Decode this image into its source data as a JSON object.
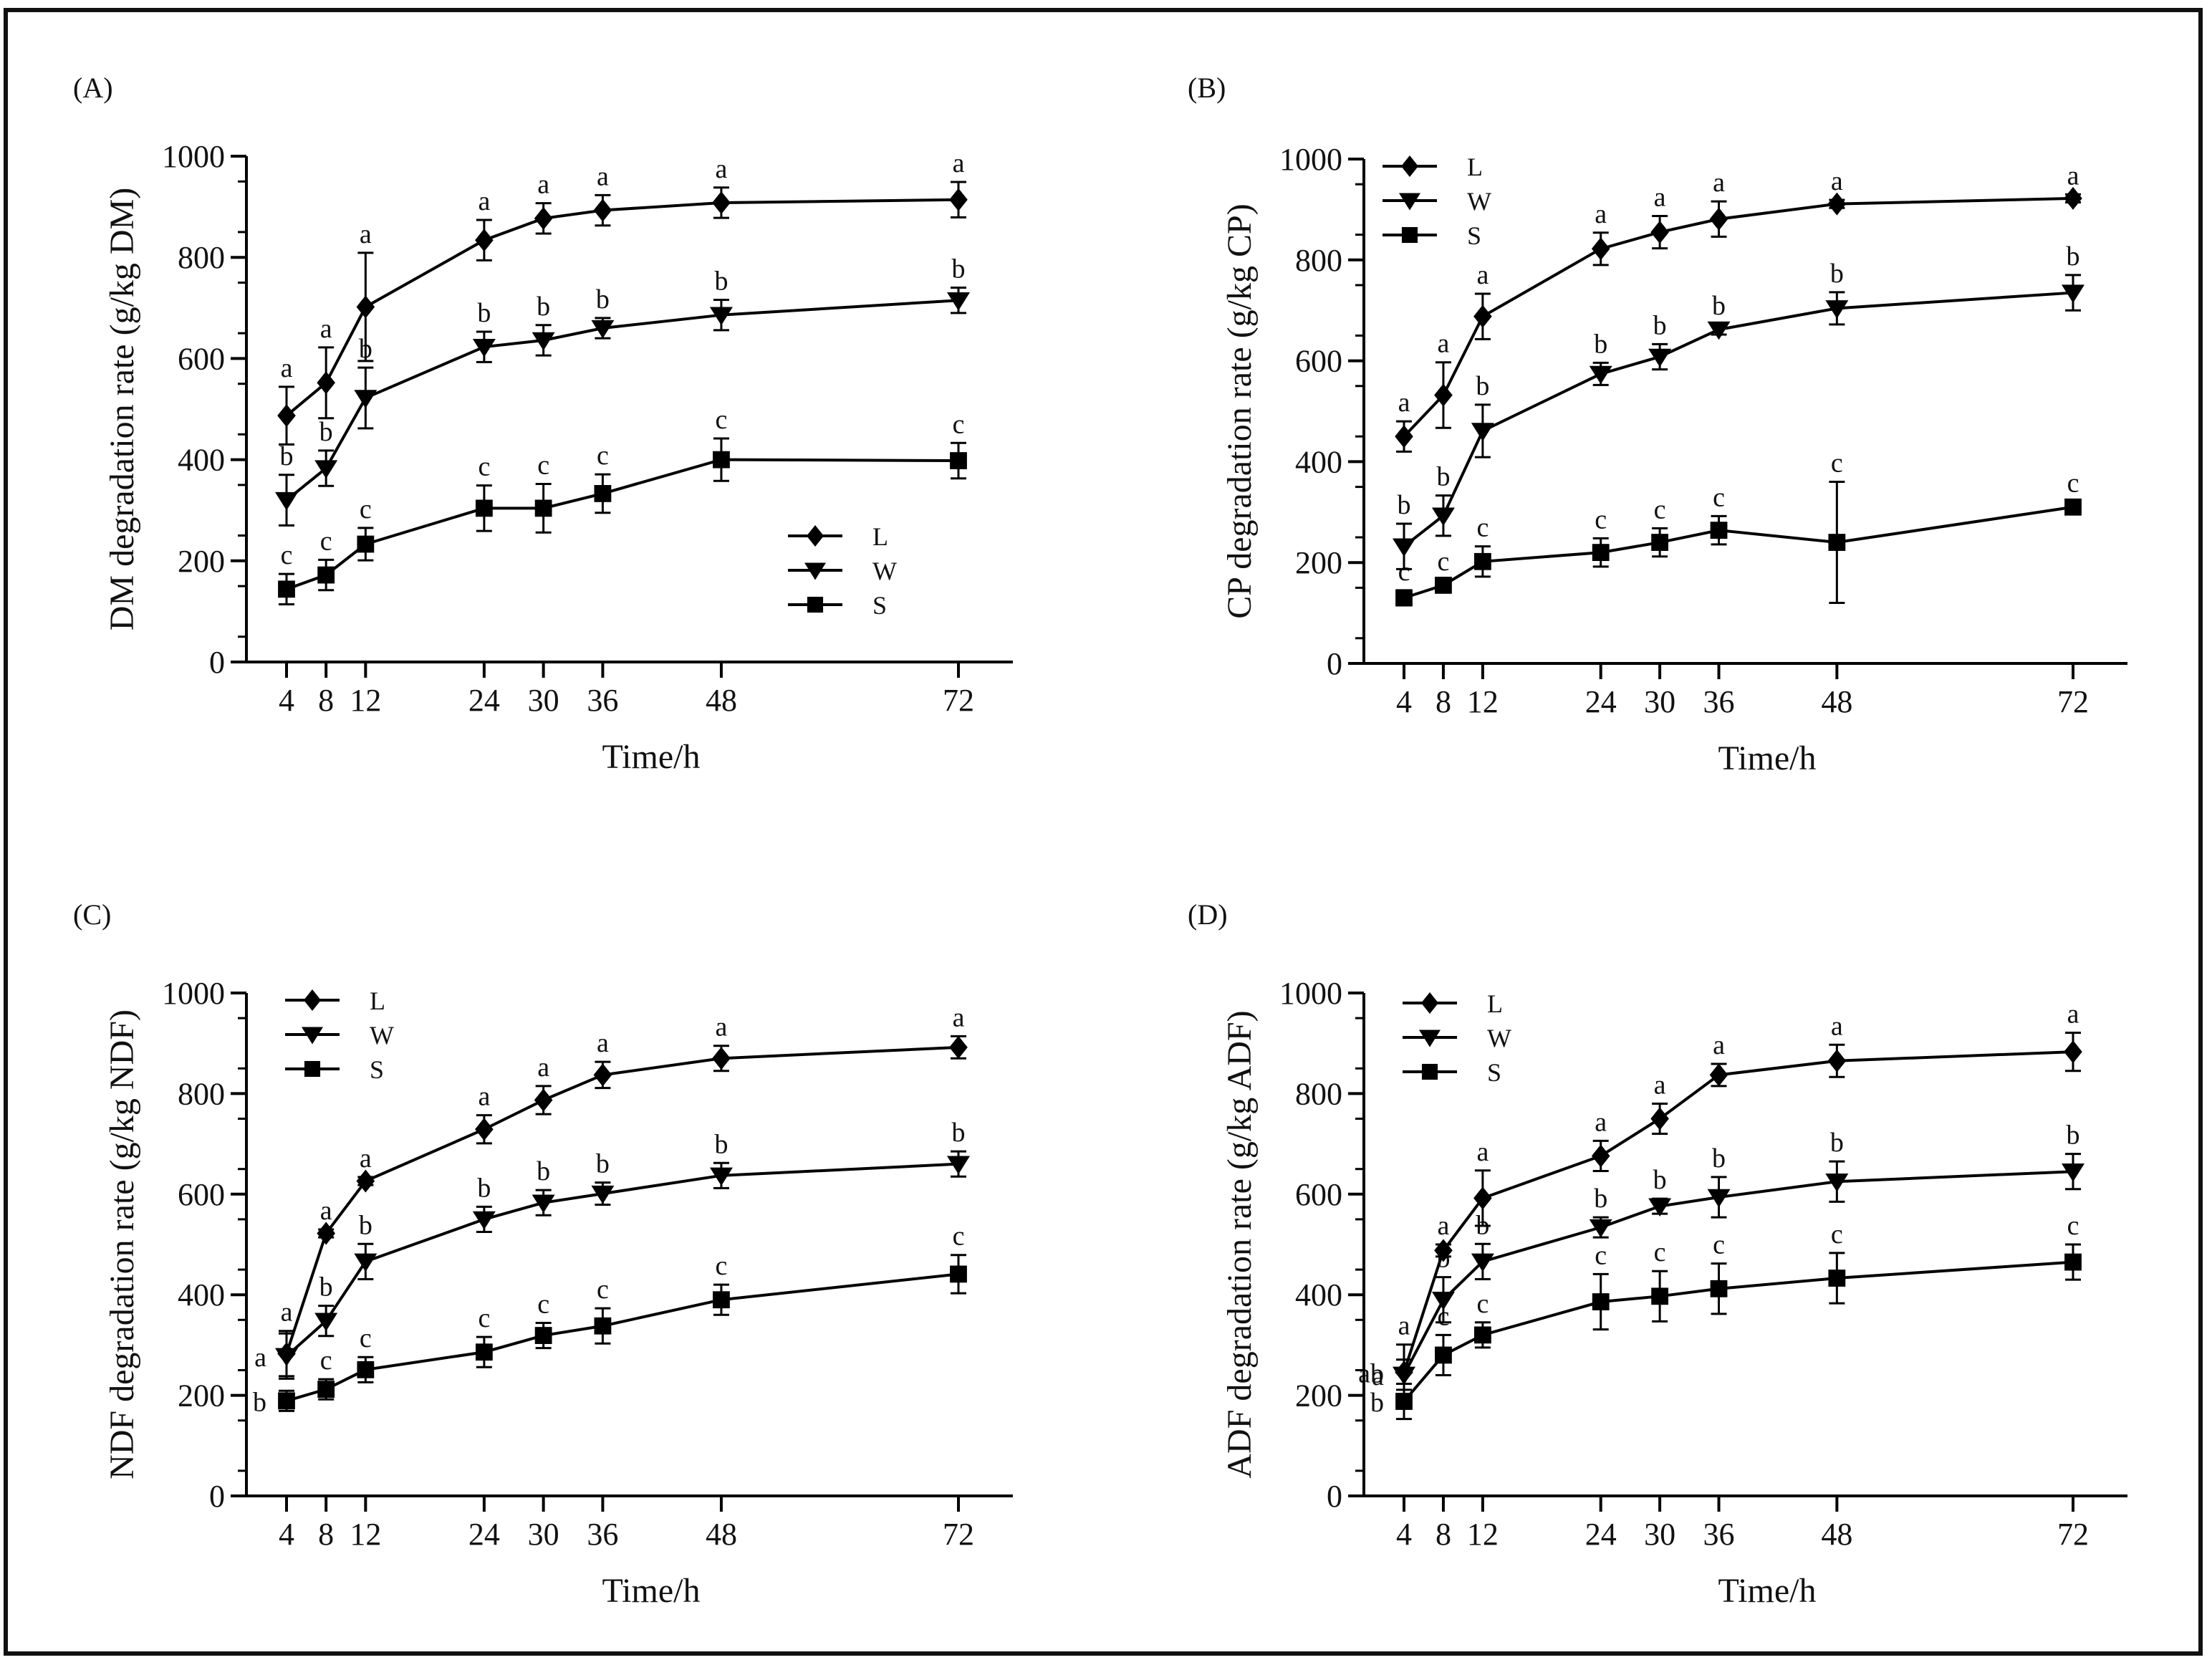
{
  "chart_data": [
    {
      "type": "line",
      "panel": "(A)",
      "xlabel": "Time/h",
      "ylabel": "DM degradation rate (g/kg DM)",
      "ylim": [
        0,
        1000
      ],
      "x": [
        4,
        8,
        12,
        24,
        30,
        36,
        48,
        72
      ],
      "x_ticks": [
        "4",
        "8",
        "12",
        "24",
        "30",
        "36",
        "48",
        "72"
      ],
      "y_ticks": [
        "0",
        "200",
        "400",
        "600",
        "800",
        "1000"
      ],
      "legend_position": "center-right",
      "series": [
        {
          "name": "L",
          "marker": "diamond",
          "values": [
            487,
            552,
            702,
            834,
            877,
            893,
            908,
            914
          ],
          "errors": [
            57,
            70,
            107,
            40,
            30,
            30,
            30,
            35
          ],
          "sig": [
            "a",
            "a",
            "a",
            "a",
            "a",
            "a",
            "a",
            "a"
          ]
        },
        {
          "name": "W",
          "marker": "triangle-down",
          "values": [
            320,
            383,
            522,
            623,
            636,
            660,
            686,
            715
          ],
          "errors": [
            50,
            35,
            60,
            30,
            30,
            20,
            30,
            25
          ],
          "sig": [
            "b",
            "b",
            "b",
            "b",
            "b",
            "b",
            "b",
            "b"
          ]
        },
        {
          "name": "S",
          "marker": "square",
          "values": [
            144,
            172,
            233,
            304,
            304,
            333,
            400,
            398
          ],
          "errors": [
            30,
            30,
            32,
            45,
            48,
            38,
            42,
            35
          ],
          "sig": [
            "c",
            "c",
            "c",
            "c",
            "c",
            "c",
            "c",
            "c"
          ]
        }
      ]
    },
    {
      "type": "line",
      "panel": "(B)",
      "xlabel": "Time/h",
      "ylabel": "CP degradation rate (g/kg CP)",
      "ylim": [
        0,
        1000
      ],
      "x": [
        4,
        8,
        12,
        24,
        30,
        36,
        48,
        72
      ],
      "x_ticks": [
        "4",
        "8",
        "12",
        "24",
        "30",
        "36",
        "48",
        "72"
      ],
      "y_ticks": [
        "0",
        "200",
        "400",
        "600",
        "800",
        "1000"
      ],
      "legend_position": "top-left",
      "series": [
        {
          "name": "L",
          "marker": "diamond",
          "values": [
            450,
            532,
            688,
            822,
            855,
            881,
            911,
            922
          ],
          "errors": [
            30,
            65,
            45,
            32,
            32,
            35,
            8,
            8
          ],
          "sig": [
            "a",
            "a",
            "a",
            "a",
            "a",
            "a",
            "a",
            "a"
          ]
        },
        {
          "name": "W",
          "marker": "triangle-down",
          "values": [
            232,
            293,
            461,
            574,
            608,
            662,
            704,
            735
          ],
          "errors": [
            45,
            40,
            52,
            22,
            25,
            10,
            32,
            35
          ],
          "sig": [
            "b",
            "b",
            "b",
            "b",
            "b",
            "b",
            "b",
            "b"
          ]
        },
        {
          "name": "S",
          "marker": "square",
          "values": [
            130,
            155,
            202,
            220,
            240,
            264,
            240,
            310
          ],
          "errors": [
            15,
            10,
            30,
            28,
            28,
            28,
            120,
            10
          ],
          "sig": [
            "c",
            "c",
            "c",
            "c",
            "c",
            "c",
            "c",
            "c"
          ]
        }
      ]
    },
    {
      "type": "line",
      "panel": "(C)",
      "xlabel": "Time/h",
      "ylabel": "NDF degradation rate (g/kg NDF)",
      "ylim": [
        0,
        1000
      ],
      "x": [
        4,
        8,
        12,
        24,
        30,
        36,
        48,
        72
      ],
      "x_ticks": [
        "4",
        "8",
        "12",
        "24",
        "30",
        "36",
        "48",
        "72"
      ],
      "y_ticks": [
        "0",
        "200",
        "400",
        "600",
        "800",
        "1000"
      ],
      "legend_position": "top-left",
      "series": [
        {
          "name": "L",
          "marker": "diamond",
          "values": [
            283,
            522,
            626,
            729,
            787,
            837,
            870,
            892
          ],
          "errors": [
            45,
            8,
            8,
            28,
            28,
            26,
            25,
            22
          ],
          "sig": [
            "a",
            "a",
            "a",
            "a",
            "a",
            "a",
            "a",
            "a"
          ]
        },
        {
          "name": "W",
          "marker": "triangle-down",
          "values": [
            278,
            348,
            466,
            550,
            583,
            601,
            637,
            660
          ],
          "errors": [
            45,
            30,
            35,
            25,
            25,
            22,
            25,
            25
          ],
          "sig": [
            "a",
            "b",
            "b",
            "b",
            "b",
            "b",
            "b",
            "b"
          ]
        },
        {
          "name": "S",
          "marker": "square",
          "values": [
            189,
            212,
            251,
            286,
            319,
            338,
            390,
            441
          ],
          "errors": [
            20,
            20,
            25,
            30,
            25,
            35,
            30,
            38
          ],
          "sig": [
            "b",
            "c",
            "c",
            "c",
            "c",
            "c",
            "c",
            "c"
          ]
        }
      ]
    },
    {
      "type": "line",
      "panel": "(D)",
      "xlabel": "Time/h",
      "ylabel": "ADF degradation rate (g/kg ADF)",
      "ylim": [
        0,
        1000
      ],
      "x": [
        4,
        8,
        12,
        24,
        30,
        36,
        48,
        72
      ],
      "x_ticks": [
        "4",
        "8",
        "12",
        "24",
        "30",
        "36",
        "48",
        "72"
      ],
      "y_ticks": [
        "0",
        "200",
        "400",
        "600",
        "800",
        "1000"
      ],
      "legend_position": "top-left",
      "series": [
        {
          "name": "L",
          "marker": "diamond",
          "values": [
            246,
            488,
            592,
            676,
            750,
            837,
            865,
            883
          ],
          "errors": [
            55,
            12,
            55,
            30,
            30,
            22,
            32,
            38
          ],
          "sig": [
            "a",
            "a",
            "a",
            "a",
            "a",
            "a",
            "a",
            "a"
          ]
        },
        {
          "name": "W",
          "marker": "triangle-down",
          "values": [
            241,
            390,
            466,
            534,
            576,
            594,
            625,
            645
          ],
          "errors": [
            30,
            45,
            35,
            20,
            15,
            40,
            40,
            35
          ],
          "sig": [
            "a",
            "b",
            "b",
            "b",
            "b",
            "b",
            "b",
            "b"
          ]
        },
        {
          "name": "S",
          "marker": "square",
          "values": [
            188,
            280,
            320,
            386,
            397,
            412,
            433,
            465
          ],
          "errors": [
            35,
            40,
            25,
            55,
            50,
            50,
            50,
            35
          ],
          "sig": [
            "b",
            "c",
            "c",
            "c",
            "c",
            "c",
            "c",
            "c"
          ]
        }
      ],
      "extra_annotations": [
        "ab"
      ]
    }
  ]
}
